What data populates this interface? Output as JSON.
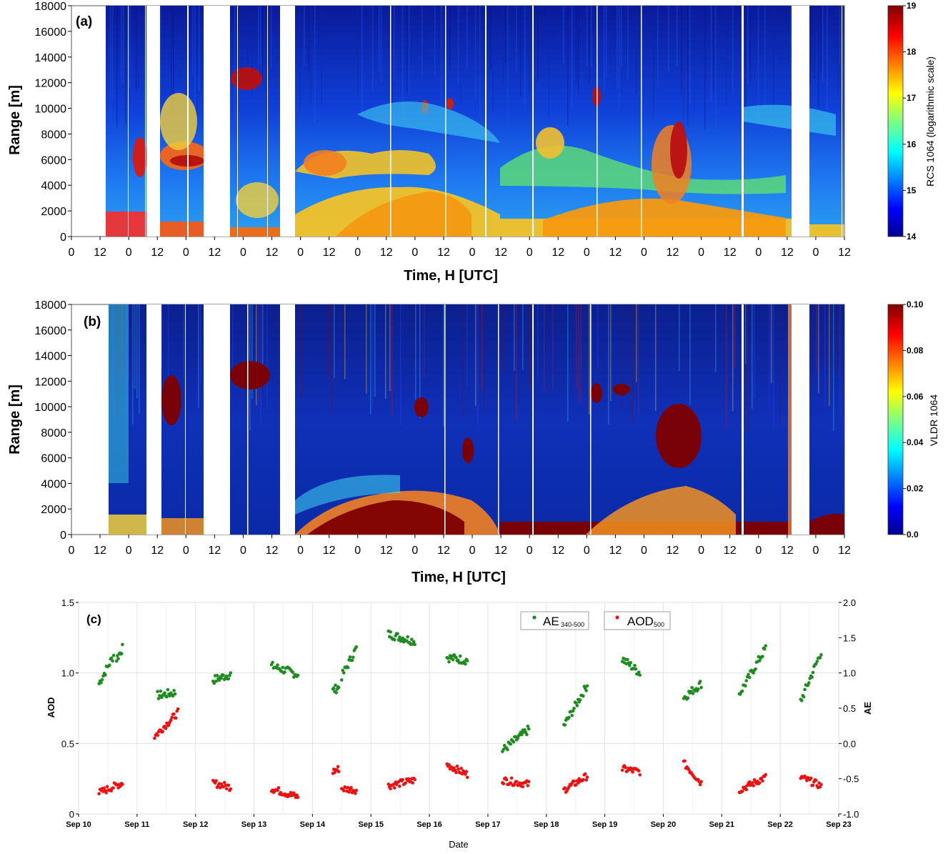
{
  "chart_data": [
    {
      "type": "heatmap",
      "panel_label": "(a)",
      "ylabel": "Range [m]",
      "xlabel": "Time, H [UTC]",
      "y_ticks": [
        "0",
        "2000",
        "4000",
        "6000",
        "8000",
        "10000",
        "12000",
        "14000",
        "16000",
        "18000"
      ],
      "x_ticks": [
        "0",
        "12",
        "0",
        "12",
        "0",
        "12",
        "0",
        "12",
        "0",
        "12",
        "0",
        "12",
        "0",
        "12",
        "0",
        "12",
        "0",
        "12",
        "0",
        "12",
        "0",
        "12",
        "0",
        "12",
        "0",
        "12",
        "0",
        "12"
      ],
      "ylim": [
        0,
        18000
      ],
      "colorbar": {
        "label": "RCS 1064 (logarithmic scale)",
        "ticks": [
          "14",
          "15",
          "16",
          "17",
          "18",
          "19"
        ],
        "range": [
          14,
          19
        ],
        "colormap": "jet"
      }
    },
    {
      "type": "heatmap",
      "panel_label": "(b)",
      "ylabel": "Range [m]",
      "xlabel": "Time, H [UTC]",
      "y_ticks": [
        "0",
        "2000",
        "4000",
        "6000",
        "8000",
        "10000",
        "12000",
        "14000",
        "16000",
        "18000"
      ],
      "x_ticks": [
        "0",
        "12",
        "0",
        "12",
        "0",
        "12",
        "0",
        "12",
        "0",
        "12",
        "0",
        "12",
        "0",
        "12",
        "0",
        "12",
        "0",
        "12",
        "0",
        "12",
        "0",
        "12",
        "0",
        "12",
        "0",
        "12",
        "0",
        "12"
      ],
      "ylim": [
        0,
        18000
      ],
      "colorbar": {
        "label": "VLDR 1064",
        "ticks": [
          "0.0",
          "0.02",
          "0.04",
          "0.06",
          "0.08",
          "0.10"
        ],
        "range": [
          0,
          0.1
        ],
        "colormap": "jet"
      }
    },
    {
      "type": "scatter",
      "panel_label": "(c)",
      "xlabel": "Date",
      "ylabel": "AOD",
      "y2label": "AE",
      "x_ticks": [
        "Sep 10",
        "Sep 11",
        "Sep 12",
        "Sep 13",
        "Sep 14",
        "Sep 15",
        "Sep 16",
        "Sep 17",
        "Sep 18",
        "Sep 19",
        "Sep 20",
        "Sep 21",
        "Sep 22",
        "Sep 23"
      ],
      "xlim": [
        "2014-09-10",
        "2014-09-23"
      ],
      "ylim": [
        0,
        1.5
      ],
      "y_ticks": [
        "0",
        "0.5",
        "1.0",
        "1.5"
      ],
      "y2lim": [
        -1.0,
        2.0
      ],
      "y2_ticks": [
        "-1.0",
        "-0.5",
        "0.0",
        "0.5",
        "1.0",
        "1.5",
        "2.0"
      ],
      "grid": true,
      "legend": [
        {
          "name": "AE",
          "sub": "340-500",
          "color": "#1e8c1e",
          "axis": "right"
        },
        {
          "name": "AOD",
          "sub": "500",
          "color": "#ee1111",
          "axis": "left"
        }
      ],
      "series": [
        {
          "name": "AE340-500",
          "axis": "right",
          "color": "#1e8c1e",
          "segments": [
            {
              "x0": 10.35,
              "x1": 10.6,
              "y0": 0.85,
              "y1": 1.25
            },
            {
              "x0": 10.65,
              "x1": 10.75,
              "y0": 1.2,
              "y1": 1.35
            },
            {
              "x0": 11.35,
              "x1": 11.65,
              "y0": 0.68,
              "y1": 0.72
            },
            {
              "x0": 12.3,
              "x1": 12.6,
              "y0": 0.9,
              "y1": 0.98
            },
            {
              "x0": 13.3,
              "x1": 13.75,
              "y0": 1.1,
              "y1": 0.98
            },
            {
              "x0": 14.35,
              "x1": 14.45,
              "y0": 0.75,
              "y1": 0.8
            },
            {
              "x0": 14.5,
              "x1": 14.75,
              "y0": 0.95,
              "y1": 1.35
            },
            {
              "x0": 15.3,
              "x1": 15.75,
              "y0": 1.55,
              "y1": 1.45
            },
            {
              "x0": 16.3,
              "x1": 16.65,
              "y0": 1.22,
              "y1": 1.18
            },
            {
              "x0": 17.25,
              "x1": 17.7,
              "y0": -0.1,
              "y1": 0.2
            },
            {
              "x0": 18.3,
              "x1": 18.7,
              "y0": 0.25,
              "y1": 0.83
            },
            {
              "x0": 19.3,
              "x1": 19.6,
              "y0": 1.2,
              "y1": 1.0
            },
            {
              "x0": 20.35,
              "x1": 20.65,
              "y0": 0.65,
              "y1": 0.85
            },
            {
              "x0": 21.3,
              "x1": 21.75,
              "y0": 0.7,
              "y1": 1.35
            },
            {
              "x0": 22.35,
              "x1": 22.7,
              "y0": 0.6,
              "y1": 1.3
            }
          ]
        },
        {
          "name": "AOD500",
          "axis": "left",
          "color": "#ee1111",
          "segments": [
            {
              "x0": 10.35,
              "x1": 10.75,
              "y0": 0.15,
              "y1": 0.22
            },
            {
              "x0": 11.3,
              "x1": 11.7,
              "y0": 0.55,
              "y1": 0.72
            },
            {
              "x0": 12.3,
              "x1": 12.6,
              "y0": 0.22,
              "y1": 0.19
            },
            {
              "x0": 13.3,
              "x1": 13.75,
              "y0": 0.18,
              "y1": 0.12
            },
            {
              "x0": 14.35,
              "x1": 14.45,
              "y0": 0.3,
              "y1": 0.32
            },
            {
              "x0": 14.5,
              "x1": 14.75,
              "y0": 0.18,
              "y1": 0.17
            },
            {
              "x0": 15.3,
              "x1": 15.75,
              "y0": 0.2,
              "y1": 0.24
            },
            {
              "x0": 16.3,
              "x1": 16.65,
              "y0": 0.35,
              "y1": 0.28
            },
            {
              "x0": 17.25,
              "x1": 17.7,
              "y0": 0.24,
              "y1": 0.21
            },
            {
              "x0": 18.3,
              "x1": 18.7,
              "y0": 0.17,
              "y1": 0.27
            },
            {
              "x0": 19.3,
              "x1": 19.6,
              "y0": 0.32,
              "y1": 0.3
            },
            {
              "x0": 20.35,
              "x1": 20.65,
              "y0": 0.36,
              "y1": 0.22
            },
            {
              "x0": 21.3,
              "x1": 21.75,
              "y0": 0.17,
              "y1": 0.26
            },
            {
              "x0": 22.35,
              "x1": 22.7,
              "y0": 0.26,
              "y1": 0.2
            }
          ]
        }
      ]
    }
  ]
}
